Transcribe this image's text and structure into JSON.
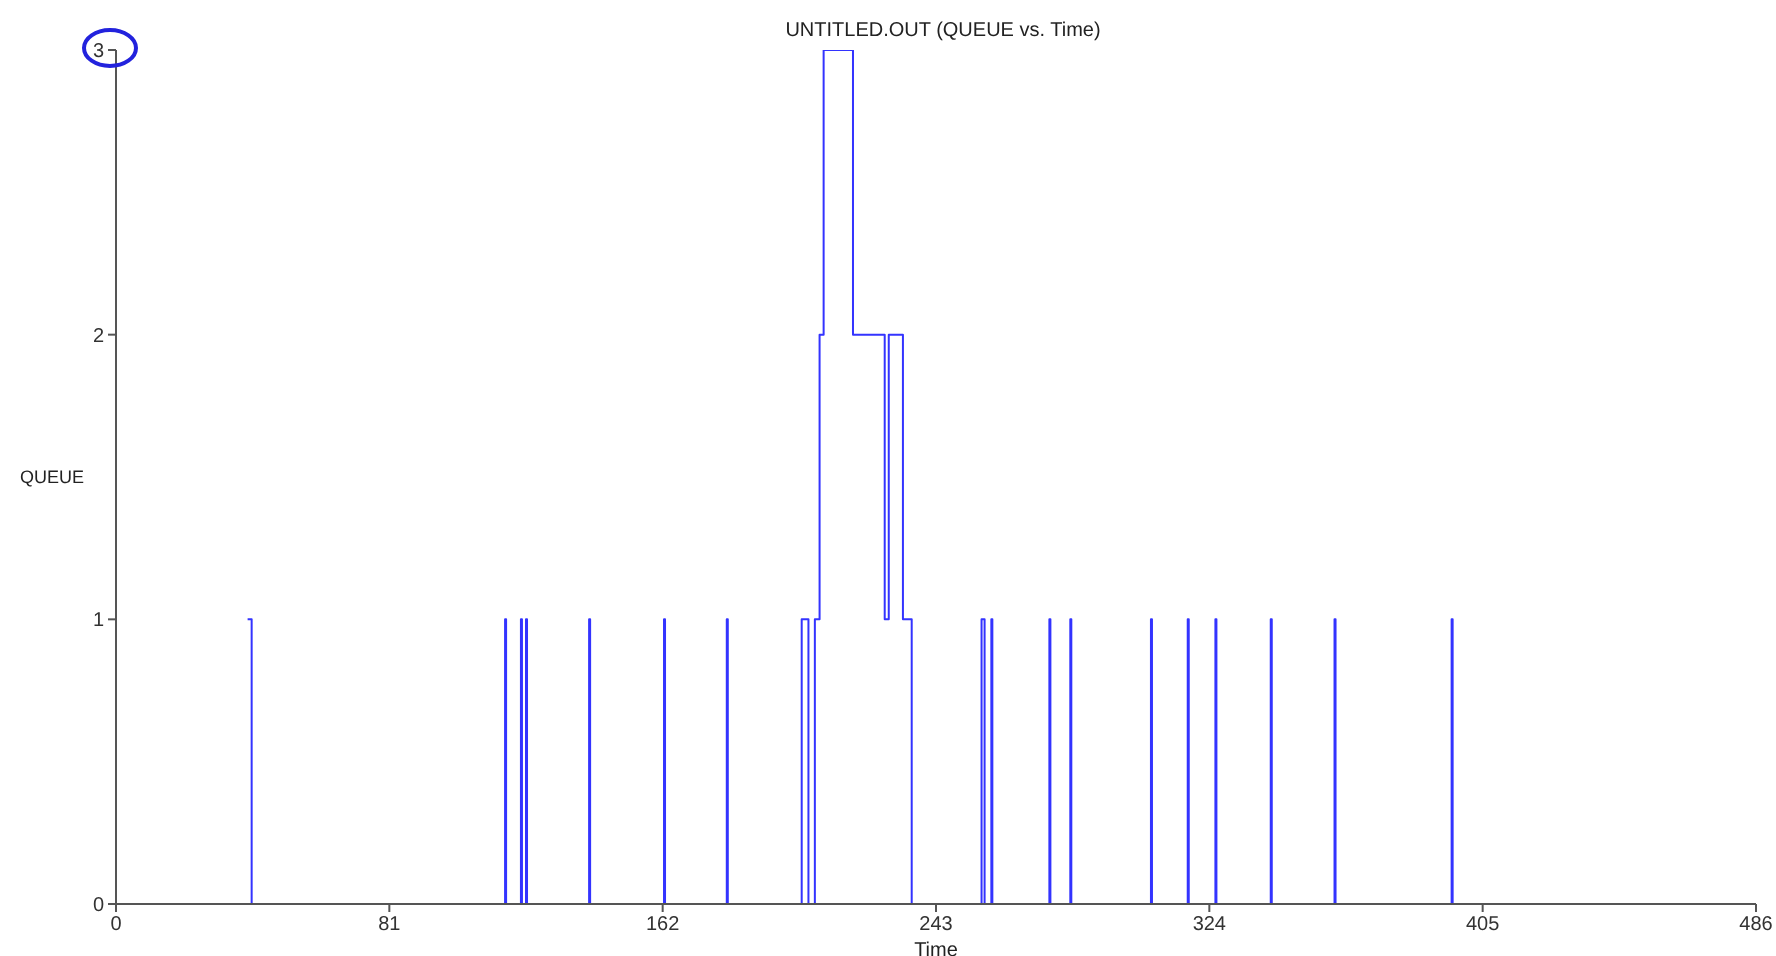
{
  "chart_data": {
    "type": "step",
    "title": "UNTITLED.OUT (QUEUE vs. Time)",
    "xlabel": "Time",
    "ylabel": "QUEUE",
    "x": [
      39.0,
      40.2,
      115.3,
      115.6,
      120.0,
      120.3,
      121.5,
      121.8,
      140.2,
      140.5,
      162.4,
      162.7,
      181.0,
      181.3,
      203.2,
      205.2,
      207.1,
      208.5,
      209.7,
      218.4,
      227.8,
      229.0,
      233.2,
      235.8,
      256.5,
      257.4,
      259.4,
      259.7,
      276.6,
      276.9,
      282.8,
      283.1,
      306.7,
      307.0,
      317.6,
      317.9,
      325.8,
      326.1,
      342.2,
      342.5,
      361.1,
      361.4,
      395.8,
      396.1
    ],
    "values": [
      1,
      0,
      1,
      0,
      1,
      0,
      1,
      0,
      1,
      0,
      1,
      0,
      1,
      0,
      1,
      0,
      1,
      2,
      3,
      2,
      1,
      2,
      1,
      0,
      1,
      0,
      1,
      0,
      1,
      0,
      1,
      0,
      1,
      0,
      1,
      0,
      1,
      0,
      1,
      0,
      1,
      0,
      1,
      0
    ],
    "color": "#3333ff",
    "marker": "none",
    "xlim": [
      0,
      486
    ],
    "xticks": [
      0,
      81,
      162,
      243,
      324,
      405,
      486
    ],
    "ylim": [
      0,
      3
    ],
    "yticks": [
      0,
      1,
      2,
      3
    ]
  }
}
